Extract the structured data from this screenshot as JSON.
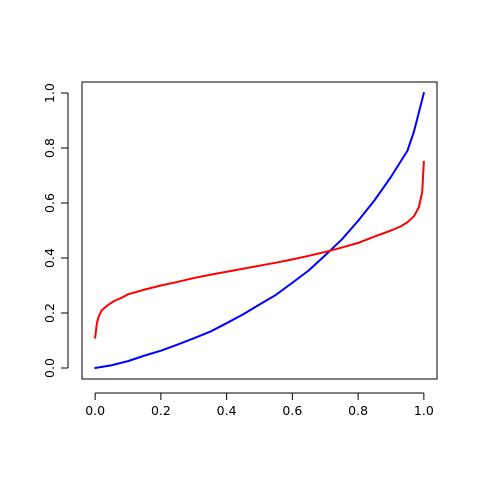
{
  "chart_data": {
    "type": "line",
    "title": "",
    "xlabel": "",
    "ylabel": "",
    "xlim": [
      -0.04,
      1.04
    ],
    "ylim": [
      -0.04,
      1.04
    ],
    "grid": false,
    "legend": "none",
    "x_ticks": [
      "0.0",
      "0.2",
      "0.4",
      "0.6",
      "0.8",
      "1.0"
    ],
    "y_ticks": [
      "0.0",
      "0.2",
      "0.4",
      "0.6",
      "0.8",
      "1.0"
    ],
    "series": [
      {
        "color": "#0000ff",
        "x": [
          0.0,
          0.05,
          0.1,
          0.15,
          0.2,
          0.25,
          0.3,
          0.35,
          0.4,
          0.45,
          0.5,
          0.55,
          0.6,
          0.65,
          0.7,
          0.75,
          0.8,
          0.85,
          0.9,
          0.95,
          0.97,
          1.0
        ],
        "y": [
          0.0,
          0.01,
          0.025,
          0.045,
          0.063,
          0.085,
          0.108,
          0.132,
          0.163,
          0.195,
          0.231,
          0.266,
          0.31,
          0.355,
          0.41,
          0.467,
          0.535,
          0.61,
          0.695,
          0.79,
          0.86,
          1.0
        ]
      },
      {
        "color": "#ff0000",
        "x": [
          0.0,
          0.005,
          0.01,
          0.02,
          0.04,
          0.06,
          0.08,
          0.1,
          0.15,
          0.2,
          0.25,
          0.3,
          0.35,
          0.4,
          0.45,
          0.5,
          0.55,
          0.6,
          0.65,
          0.7,
          0.75,
          0.8,
          0.85,
          0.9,
          0.93,
          0.95,
          0.97,
          0.985,
          0.995,
          1.0
        ],
        "y": [
          0.11,
          0.16,
          0.185,
          0.21,
          0.23,
          0.245,
          0.255,
          0.268,
          0.285,
          0.3,
          0.313,
          0.327,
          0.339,
          0.35,
          0.361,
          0.372,
          0.383,
          0.395,
          0.408,
          0.422,
          0.438,
          0.455,
          0.478,
          0.5,
          0.515,
          0.53,
          0.552,
          0.585,
          0.64,
          0.75
        ]
      }
    ]
  }
}
